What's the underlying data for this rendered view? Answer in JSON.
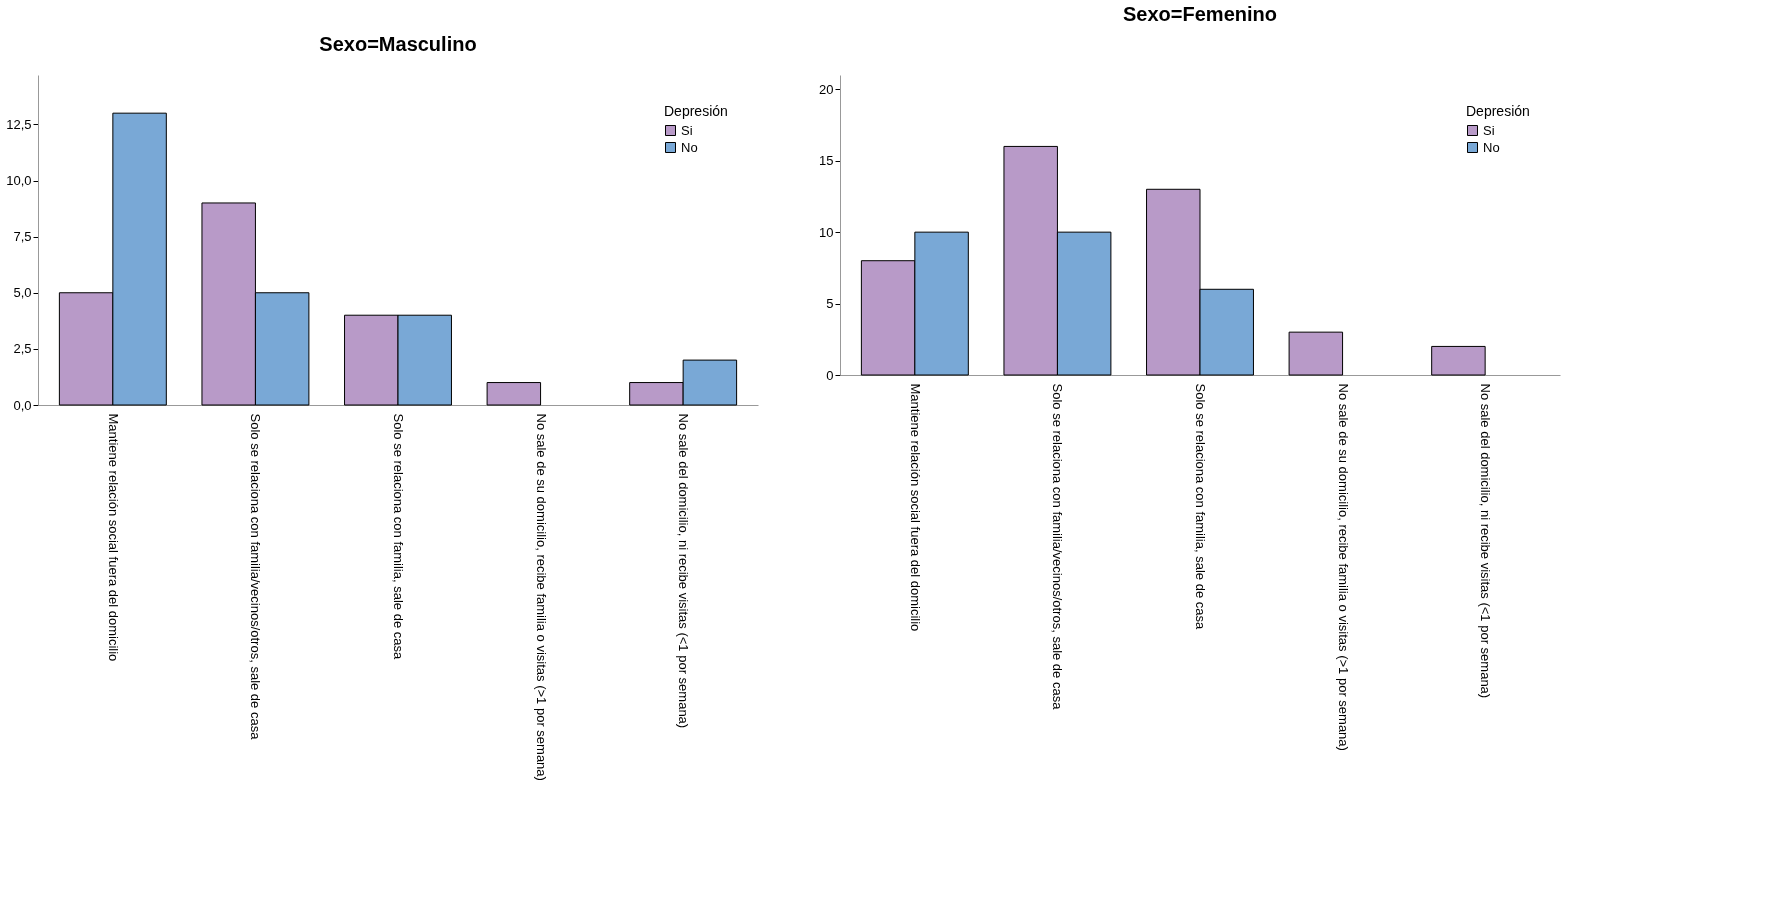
{
  "chart_data": [
    {
      "type": "bar",
      "title": "Sexo=Masculino",
      "legend_title": "Depresión",
      "legend": "top right",
      "grid": false,
      "categories": [
        "Mantiene relación social fuera del domicilio",
        "Solo se relaciona con familia/vecinos/otros, sale de casa",
        "Solo se relaciona con familia, sale de casa",
        "No sale de su domicilio, recibe familia o visitas (>1 por semana)",
        "No sale del domicilio, ni recibe visitas (<1 por semana)"
      ],
      "series": [
        {
          "name": "Si",
          "color": "#b89ac8",
          "values": [
            5,
            9,
            4,
            1,
            1
          ]
        },
        {
          "name": "No",
          "color": "#79a8d6",
          "values": [
            13,
            5,
            4,
            null,
            2
          ]
        }
      ],
      "ylim": [
        0,
        14.7
      ],
      "yticks": [
        {
          "value": 0,
          "label": "0,0"
        },
        {
          "value": 2.5,
          "label": "2,5"
        },
        {
          "value": 5,
          "label": "5,0"
        },
        {
          "value": 7.5,
          "label": "7,5"
        },
        {
          "value": 10,
          "label": "10,0"
        },
        {
          "value": 12.5,
          "label": "12,5"
        }
      ]
    },
    {
      "type": "bar",
      "title": "Sexo=Femenino",
      "legend_title": "Depresión",
      "legend": "top right",
      "grid": false,
      "categories": [
        "Mantiene relación social fuera del domicilio",
        "Solo se relaciona con familia/vecinos/otros, sale de casa",
        "Solo se relaciona con familia, sale de casa",
        "No sale de su domicilio, recibe familia o visitas (>1 por semana)",
        "No sale del domicilio, ni recibe visitas (<1 por semana)"
      ],
      "series": [
        {
          "name": "Si",
          "color": "#b89ac8",
          "values": [
            8,
            16,
            13,
            3,
            2
          ]
        },
        {
          "name": "No",
          "color": "#79a8d6",
          "values": [
            10,
            10,
            6,
            null,
            null
          ]
        }
      ],
      "ylim": [
        0,
        21
      ],
      "yticks": [
        0,
        5,
        10,
        15,
        20
      ]
    }
  ]
}
